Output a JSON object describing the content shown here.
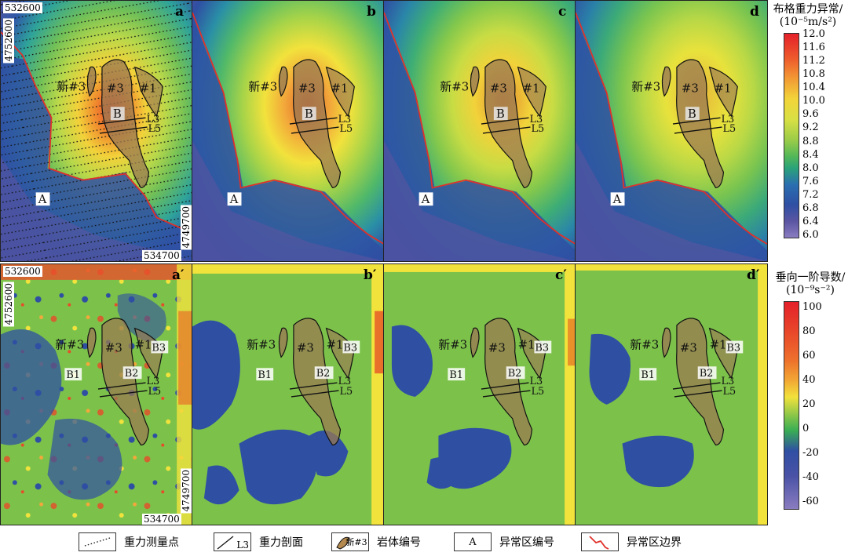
{
  "panels_top": [
    {
      "label": "a",
      "anomaly_A": "A",
      "anomaly_B": "B"
    },
    {
      "label": "b",
      "anomaly_A": "A",
      "anomaly_B": "B"
    },
    {
      "label": "c",
      "anomaly_A": "A",
      "anomaly_B": "B"
    },
    {
      "label": "d",
      "anomaly_A": "A",
      "anomaly_B": "B"
    }
  ],
  "panels_bottom": [
    {
      "label": "a′"
    },
    {
      "label": "b′"
    },
    {
      "label": "c′"
    },
    {
      "label": "d′"
    }
  ],
  "map_labels": {
    "rock_new3": "新#3",
    "rock_3": "#3",
    "rock_1": "#1",
    "profile_L3": "L3",
    "profile_L5": "L5",
    "anomaly_B1": "B1",
    "anomaly_B2": "B2",
    "anomaly_B3": "B3"
  },
  "coordinates": {
    "x_top": "532600",
    "y_left": "4752600",
    "x_bottom": "534700",
    "y_right": "4749700"
  },
  "colorbar_top": {
    "title_line1": "布格重力异常/",
    "title_line2": "(10⁻⁵m/s²)",
    "ticks": [
      "12.0",
      "11.6",
      "11.2",
      "10.8",
      "10.4",
      "10.0",
      "9.6",
      "9.2",
      "8.8",
      "8.4",
      "8.0",
      "7.6",
      "7.2",
      "6.8",
      "6.4",
      "6.0"
    ]
  },
  "colorbar_bottom": {
    "title_line1": "垂向一阶导数/",
    "title_line2": "(10⁻⁹s⁻²)",
    "ticks": [
      "100",
      "80",
      "60",
      "40",
      "20",
      "0",
      "-20",
      "-40",
      "-60"
    ]
  },
  "legend": [
    {
      "symbol": "dotted-line",
      "label": "重力测量点"
    },
    {
      "symbol": "profile-line",
      "symbol_text": "L3",
      "label": "重力剖面"
    },
    {
      "symbol": "rock-body",
      "symbol_text": "新#3",
      "label": "岩体编号"
    },
    {
      "symbol": "letter-box",
      "symbol_text": "A",
      "label": "异常区编号"
    },
    {
      "symbol": "red-boundary",
      "label": "异常区边界"
    }
  ],
  "colors": {
    "red_boundary": "#e0302a",
    "rock_fill": "#9a7a52",
    "blue_low": "#2f4fa3",
    "green_mid": "#7cc24a",
    "yellow_high": "#f2e23c",
    "red_peak": "#e0302a"
  }
}
